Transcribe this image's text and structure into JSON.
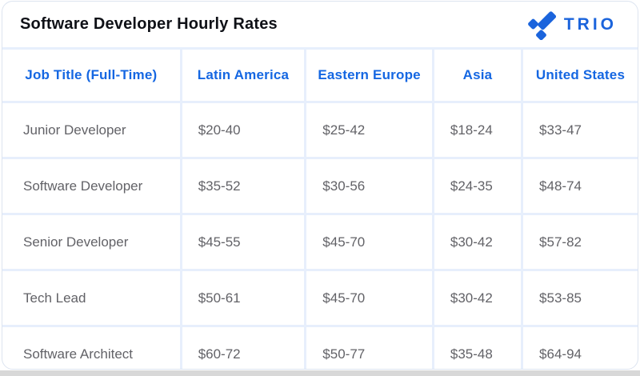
{
  "header": {
    "title": "Software Developer Hourly Rates",
    "logo_text": "TRIO"
  },
  "colors": {
    "brand_blue": "#1b64dc",
    "header_text_blue": "#1567e2",
    "body_text_gray": "#626267",
    "grid_line": "#e7effc",
    "card_border": "#dde4f0",
    "bottom_strip": "#d8d8d8"
  },
  "chart_data": {
    "type": "table",
    "title": "Software Developer Hourly Rates",
    "columns": [
      "Job Title (Full-Time)",
      "Latin America",
      "Eastern Europe",
      "Asia",
      "United States"
    ],
    "rows": [
      [
        "Junior Developer",
        "$20-40",
        "$25-42",
        "$18-24",
        "$33-47"
      ],
      [
        "Software Developer",
        "$35-52",
        "$30-56",
        "$24-35",
        "$48-74"
      ],
      [
        "Senior Developer",
        "$45-55",
        "$45-70",
        "$30-42",
        "$57-82"
      ],
      [
        "Tech Lead",
        "$50-61",
        "$45-70",
        "$30-42",
        "$53-85"
      ],
      [
        "Software Architect",
        "$60-72",
        "$50-77",
        "$35-48",
        "$64-94"
      ]
    ],
    "units": "USD per hour",
    "layout": "rows are job seniority levels, columns are regions"
  }
}
